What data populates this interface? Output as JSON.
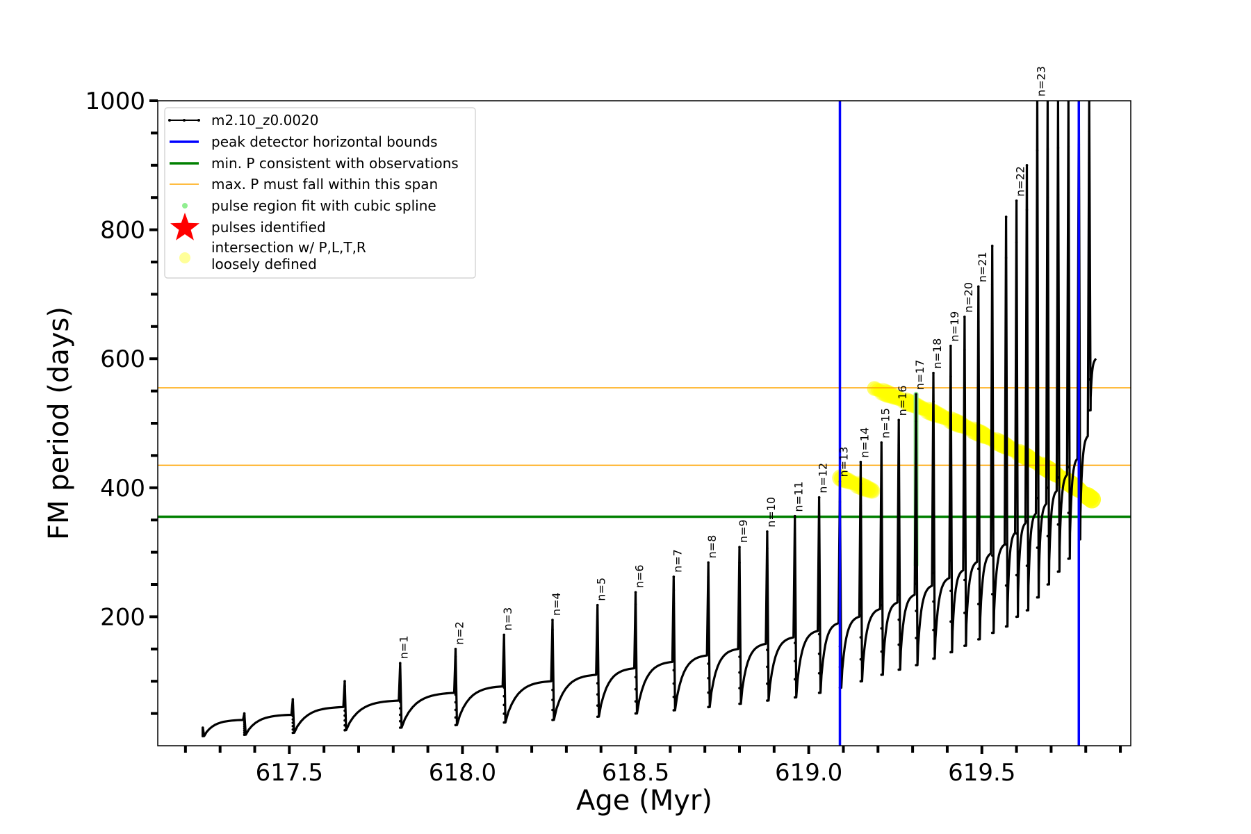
{
  "chart_data": {
    "type": "line",
    "title": "",
    "xlabel": "Age (Myr)",
    "ylabel": "FM period (days)",
    "xlim": [
      617.12,
      619.93
    ],
    "ylim": [
      0,
      1000
    ],
    "x_ticks": [
      617.5,
      618.0,
      618.5,
      619.0,
      619.5
    ],
    "x_tick_labels": [
      "617.5",
      "618.0",
      "618.5",
      "619.0",
      "619.5"
    ],
    "y_ticks": [
      200,
      400,
      600,
      800,
      1000
    ],
    "y_tick_labels": [
      "200",
      "400",
      "600",
      "800",
      "1000"
    ],
    "grid": false,
    "legend_position": "top-left",
    "legend": [
      {
        "label": "m2.10_z0.0020",
        "kind": "line-marker",
        "color": "#000000"
      },
      {
        "label": "peak detector horizontal bounds",
        "kind": "line",
        "color": "#0000ff"
      },
      {
        "label": "min. P consistent with observations",
        "kind": "line",
        "color": "#008000"
      },
      {
        "label": "max. P must fall within this span",
        "kind": "line",
        "color": "#ffa500"
      },
      {
        "label": "pulse region fit with cubic spline",
        "kind": "dot",
        "color": "#90ee90"
      },
      {
        "label": "pulses identified",
        "kind": "star",
        "color": "#ff0000"
      },
      {
        "label": "intersection w/ P,L,T,R",
        "label2": "loosely defined",
        "kind": "dot",
        "color": "#ffff99"
      }
    ],
    "vertical_lines": [
      {
        "name": "peak detector horizontal bounds",
        "x": 619.09,
        "color": "#0000ff"
      },
      {
        "name": "peak detector horizontal bounds",
        "x": 619.78,
        "color": "#0000ff"
      }
    ],
    "horizontal_lines": [
      {
        "name": "min. P consistent with observations",
        "y": 355,
        "color": "#008000"
      },
      {
        "name": "max. P must fall within this span",
        "y": 555,
        "color": "#ffa500"
      },
      {
        "name": "max. P must fall within this span",
        "y": 435,
        "color": "#ffa500"
      }
    ],
    "series": [
      {
        "name": "m2.10_z0.0020",
        "color": "#000000",
        "pulses": [
          {
            "label": "",
            "x": 617.25,
            "peak": 28,
            "min": 15,
            "end": 40
          },
          {
            "label": "",
            "x": 617.37,
            "peak": 50,
            "min": 17,
            "end": 48
          },
          {
            "label": "",
            "x": 617.51,
            "peak": 72,
            "min": 20,
            "end": 60
          },
          {
            "label": "",
            "x": 617.66,
            "peak": 100,
            "min": 24,
            "end": 70
          },
          {
            "label": "n=1",
            "x": 617.82,
            "peak": 128,
            "min": 28,
            "end": 82
          },
          {
            "label": "n=2",
            "x": 617.98,
            "peak": 150,
            "min": 32,
            "end": 92
          },
          {
            "label": "n=3",
            "x": 618.12,
            "peak": 172,
            "min": 36,
            "end": 100
          },
          {
            "label": "n=4",
            "x": 618.26,
            "peak": 195,
            "min": 40,
            "end": 110
          },
          {
            "label": "n=5",
            "x": 618.39,
            "peak": 218,
            "min": 45,
            "end": 120
          },
          {
            "label": "n=6",
            "x": 618.5,
            "peak": 238,
            "min": 50,
            "end": 130
          },
          {
            "label": "n=7",
            "x": 618.61,
            "peak": 262,
            "min": 55,
            "end": 140
          },
          {
            "label": "n=8",
            "x": 618.71,
            "peak": 284,
            "min": 60,
            "end": 150
          },
          {
            "label": "n=9",
            "x": 618.8,
            "peak": 308,
            "min": 65,
            "end": 158
          },
          {
            "label": "n=10",
            "x": 618.88,
            "peak": 332,
            "min": 70,
            "end": 168
          },
          {
            "label": "n=11",
            "x": 618.96,
            "peak": 356,
            "min": 75,
            "end": 178
          },
          {
            "label": "n=12",
            "x": 619.03,
            "peak": 385,
            "min": 82,
            "end": 190
          },
          {
            "label": "n=13",
            "x": 619.09,
            "peak": 410,
            "min": 90,
            "end": 200
          },
          {
            "label": "n=14",
            "x": 619.15,
            "peak": 440,
            "min": 100,
            "end": 212
          },
          {
            "label": "n=15",
            "x": 619.21,
            "peak": 470,
            "min": 110,
            "end": 222
          },
          {
            "label": "n=16",
            "x": 619.26,
            "peak": 505,
            "min": 118,
            "end": 234
          },
          {
            "label": "n=17",
            "x": 619.31,
            "peak": 545,
            "min": 125,
            "end": 248
          },
          {
            "label": "n=18",
            "x": 619.36,
            "peak": 578,
            "min": 135,
            "end": 260
          },
          {
            "label": "n=19",
            "x": 619.41,
            "peak": 620,
            "min": 145,
            "end": 272
          },
          {
            "label": "n=20",
            "x": 619.45,
            "peak": 665,
            "min": 155,
            "end": 285
          },
          {
            "label": "n=21",
            "x": 619.49,
            "peak": 712,
            "min": 165,
            "end": 298
          },
          {
            "label": "",
            "x": 619.53,
            "peak": 775,
            "min": 175,
            "end": 312
          },
          {
            "label": "",
            "x": 619.57,
            "peak": 820,
            "min": 185,
            "end": 330
          },
          {
            "label": "n=22",
            "x": 619.6,
            "peak": 845,
            "min": 200,
            "end": 345
          },
          {
            "label": "",
            "x": 619.63,
            "peak": 900,
            "min": 210,
            "end": 360
          },
          {
            "label": "n=23",
            "x": 619.66,
            "peak": 1000,
            "min": 230,
            "end": 375
          },
          {
            "label": "",
            "x": 619.69,
            "peak": 1000,
            "min": 250,
            "end": 395
          },
          {
            "label": "",
            "x": 619.72,
            "peak": 1000,
            "min": 270,
            "end": 420
          },
          {
            "label": "",
            "x": 619.75,
            "peak": 1000,
            "min": 290,
            "end": 445
          },
          {
            "label": "",
            "x": 619.78,
            "peak": 1000,
            "min": 320,
            "end": 480
          },
          {
            "label": "",
            "x": 619.81,
            "peak": 1000,
            "min": 520,
            "end": 600
          }
        ]
      }
    ],
    "cubic_spline_region": {
      "name": "pulse region fit with cubic spline",
      "x": 619.31,
      "y_from": 280,
      "y_to": 545,
      "color": "#90ee90"
    },
    "intersection_region": {
      "name": "intersection w/ P,L,T,R",
      "x_from": 619.09,
      "x_to": 619.82,
      "y_from": 355,
      "y_to": 555,
      "color": "#ffff00"
    }
  }
}
